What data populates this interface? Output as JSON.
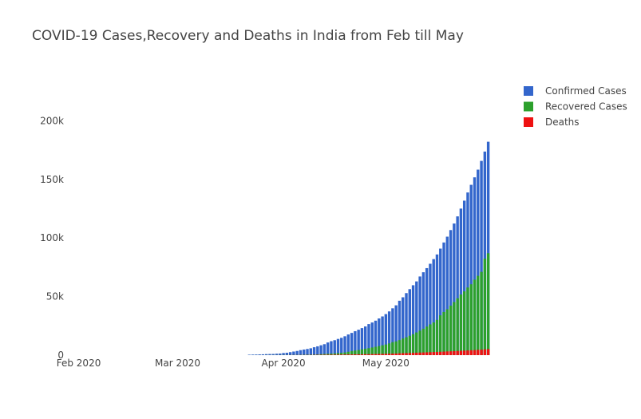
{
  "chart_data": {
    "type": "bar",
    "barmode": "overlay",
    "title": "COVID-19 Cases,Recovery and Deaths in India from Feb till May",
    "xlabel": "",
    "ylabel": "",
    "x_start": "2020-01-30",
    "x_end": "2020-06-05",
    "ylim": [
      0,
      235000
    ],
    "grid": false,
    "legend_position": "top-right",
    "x_ticks": [
      {
        "date": "2020-02-01",
        "label": "Feb 2020"
      },
      {
        "date": "2020-03-01",
        "label": "Mar 2020"
      },
      {
        "date": "2020-04-01",
        "label": "Apr 2020"
      },
      {
        "date": "2020-05-01",
        "label": "May 2020"
      }
    ],
    "y_ticks": [
      {
        "value": 0,
        "label": "0"
      },
      {
        "value": 50000,
        "label": "50k"
      },
      {
        "value": 100000,
        "label": "100k"
      },
      {
        "value": 150000,
        "label": "150k"
      },
      {
        "value": 200000,
        "label": "200k"
      }
    ],
    "dates": [
      "2020-03-22",
      "2020-03-23",
      "2020-03-24",
      "2020-03-25",
      "2020-03-26",
      "2020-03-27",
      "2020-03-28",
      "2020-03-29",
      "2020-03-30",
      "2020-03-31",
      "2020-04-01",
      "2020-04-02",
      "2020-04-03",
      "2020-04-04",
      "2020-04-05",
      "2020-04-06",
      "2020-04-07",
      "2020-04-08",
      "2020-04-09",
      "2020-04-10",
      "2020-04-11",
      "2020-04-12",
      "2020-04-13",
      "2020-04-14",
      "2020-04-15",
      "2020-04-16",
      "2020-04-17",
      "2020-04-18",
      "2020-04-19",
      "2020-04-20",
      "2020-04-21",
      "2020-04-22",
      "2020-04-23",
      "2020-04-24",
      "2020-04-25",
      "2020-04-26",
      "2020-04-27",
      "2020-04-28",
      "2020-04-29",
      "2020-04-30",
      "2020-05-01",
      "2020-05-02",
      "2020-05-03",
      "2020-05-04",
      "2020-05-05",
      "2020-05-06",
      "2020-05-07",
      "2020-05-08",
      "2020-05-09",
      "2020-05-10",
      "2020-05-11",
      "2020-05-12",
      "2020-05-13",
      "2020-05-14",
      "2020-05-15",
      "2020-05-16",
      "2020-05-17",
      "2020-05-18",
      "2020-05-19",
      "2020-05-20",
      "2020-05-21",
      "2020-05-22",
      "2020-05-23",
      "2020-05-24",
      "2020-05-25",
      "2020-05-26",
      "2020-05-27",
      "2020-05-28",
      "2020-05-29",
      "2020-05-30",
      "2020-05-31"
    ],
    "series": [
      {
        "name": "Confirmed Cases",
        "color": "#3366cc",
        "values": [
          396,
          499,
          536,
          657,
          727,
          887,
          987,
          1024,
          1251,
          1397,
          1834,
          2069,
          2547,
          3072,
          3577,
          4281,
          4789,
          5274,
          5865,
          6761,
          7529,
          8447,
          9352,
          10815,
          11933,
          12759,
          13835,
          14792,
          16116,
          17656,
          18985,
          20471,
          21700,
          23077,
          24506,
          26496,
          27892,
          29435,
          31332,
          33050,
          35043,
          37336,
          39980,
          42533,
          46433,
          49391,
          52952,
          56342,
          59662,
          62939,
          67152,
          70756,
          74281,
          78003,
          81970,
          85940,
          90927,
          96169,
          101139,
          106750,
          112359,
          118447,
          125101,
          131868,
          138845,
          145380,
          151767,
          158333,
          165799,
          173763,
          182143
        ]
      },
      {
        "name": "Recovered Cases",
        "color": "#2ca02c",
        "values": [
          27,
          35,
          40,
          43,
          45,
          80,
          85,
          95,
          110,
          123,
          144,
          155,
          169,
          191,
          229,
          291,
          353,
          411,
          473,
          504,
          580,
          857,
          1036,
          1181,
          1359,
          1513,
          1768,
          2015,
          2302,
          2854,
          3486,
          3959,
          4370,
          5012,
          5498,
          5939,
          6523,
          7137,
          7747,
          8437,
          9068,
          10007,
          11109,
          11762,
          12847,
          14183,
          15266,
          16540,
          17847,
          19358,
          20917,
          22549,
          24386,
          26235,
          27920,
          30153,
          33988,
          36824,
          39174,
          42298,
          45300,
          48534,
          51784,
          54440,
          57721,
          60491,
          64426,
          67692,
          71106,
          82370,
          86984
        ]
      },
      {
        "name": "Deaths",
        "color": "#ee1111",
        "values": [
          7,
          9,
          10,
          12,
          17,
          20,
          24,
          27,
          32,
          35,
          41,
          53,
          72,
          86,
          99,
          114,
          124,
          149,
          169,
          206,
          242,
          273,
          324,
          353,
          392,
          420,
          452,
          488,
          519,
          559,
          603,
          652,
          686,
          723,
          775,
          826,
          885,
          937,
          1007,
          1074,
          1147,
          1218,
          1301,
          1373,
          1568,
          1694,
          1783,
          1886,
          1981,
          2109,
          2206,
          2293,
          2415,
          2549,
          2649,
          2752,
          2872,
          3029,
          3163,
          3303,
          3435,
          3583,
          3720,
          3867,
          4021,
          4167,
          4337,
          4531,
          4706,
          4971,
          5164
        ]
      }
    ]
  }
}
